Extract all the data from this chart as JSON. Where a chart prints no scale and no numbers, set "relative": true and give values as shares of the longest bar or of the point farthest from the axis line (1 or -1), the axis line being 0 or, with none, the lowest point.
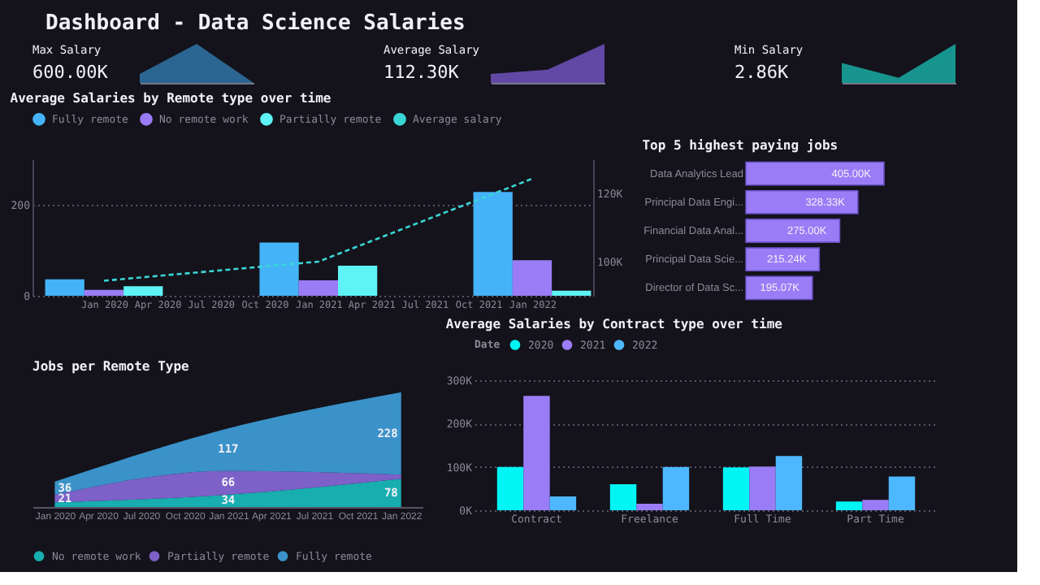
{
  "chart_data": [
    {
      "type": "other",
      "title": "Dashboard - Data Science Salaries"
    },
    {
      "type": "area",
      "relative": true,
      "title": "Max Salary",
      "annotations": [
        "600.00K"
      ],
      "categories": [
        null,
        null,
        null
      ],
      "tick_labels": false,
      "series": [
        {
          "color": "#2e6f9e",
          "values": [
            0.23,
            1,
            0
          ]
        }
      ]
    },
    {
      "type": "area",
      "relative": true,
      "title": "Average Salary",
      "annotations": [
        "112.30K"
      ],
      "categories": [
        null,
        null,
        null
      ],
      "tick_labels": false,
      "series": [
        {
          "color": "#6a4fb5",
          "values": [
            0.23,
            0.34,
            1
          ]
        }
      ]
    },
    {
      "type": "area",
      "relative": true,
      "title": "Min Salary",
      "annotations": [
        "2.86K"
      ],
      "categories": [
        null,
        null,
        null
      ],
      "tick_labels": false,
      "series": [
        {
          "color": "#17a39b",
          "values": [
            0.51,
            0.13,
            1
          ]
        }
      ]
    },
    {
      "type": "bar",
      "title": "Average Salaries by Remote type over time",
      "x": [
        "2020-01",
        "2021-01",
        "2022-01"
      ],
      "xlim": [
        "2019-09-01",
        "2022-04-15"
      ],
      "xticks": [
        {
          "value": "2020-01",
          "label": "Jan 2020"
        },
        {
          "value": "2020-04",
          "label": "Apr 2020"
        },
        {
          "value": "2020-07",
          "label": "Jul 2020"
        },
        {
          "value": "2020-10",
          "label": "Oct 2020"
        },
        {
          "value": "2021-01",
          "label": "Jan 2021"
        },
        {
          "value": "2021-04",
          "label": "Apr 2021"
        },
        {
          "value": "2021-07",
          "label": "Jul 2021"
        },
        {
          "value": "2021-10",
          "label": "Oct 2021"
        },
        {
          "value": "2022-01",
          "label": "Jan 2022"
        }
      ],
      "ylim": [
        0,
        300
      ],
      "yticks": [
        0,
        200
      ],
      "y2lim": [
        90,
        130
      ],
      "y2ticks": [
        {
          "value": 100,
          "label": "100K"
        },
        {
          "value": 120,
          "label": "120K"
        }
      ],
      "grid": "y",
      "legend": "top",
      "series": [
        {
          "name": "Fully remote",
          "color": "#45b3f8",
          "values": [
            36,
            117,
            228
          ]
        },
        {
          "name": "No remote work",
          "color": "#9b7cf7",
          "values": [
            13,
            34,
            78
          ]
        },
        {
          "name": "Partially remote",
          "color": "#5ef3f5",
          "values": [
            21,
            66,
            11
          ]
        },
        {
          "name": "Average salary",
          "type": "line",
          "axis": "y2",
          "line_style": "dashed",
          "color": "#3ad6d6",
          "values": [
            94.4,
            100,
            124.3
          ]
        }
      ]
    },
    {
      "type": "bar",
      "orientation": "horizontal",
      "title": "Top 5 highest paying jobs",
      "categories": [
        "Data Analytics Lead",
        "Principal Data Engi...",
        "Financial Data Anal...",
        "Principal Data Scie...",
        "Director of Data Sc..."
      ],
      "values": [
        405.0,
        328.33,
        275.0,
        215.24,
        195.07
      ],
      "value_labels": [
        "405.00K",
        "328.33K",
        "275.00K",
        "215.24K",
        "195.07K"
      ],
      "colors": [
        "#9b7cf7",
        "#9b7cf7",
        "#9b7cf7",
        "#9b7cf7",
        "#9b7cf7"
      ],
      "tick_labels": "y"
    },
    {
      "type": "area",
      "stacked": true,
      "title": "Jobs per Remote Type",
      "x": [
        "2020-01",
        "2021-01",
        "2022-01"
      ],
      "xlim": [
        "2019-11-15",
        "2022-02-15"
      ],
      "xticks": [
        {
          "value": "2020-01",
          "label": "Jan 2020"
        },
        {
          "value": "2020-04",
          "label": "Apr 2020"
        },
        {
          "value": "2020-07",
          "label": "Jul 2020"
        },
        {
          "value": "2020-10",
          "label": "Oct 2020"
        },
        {
          "value": "2021-01",
          "label": "Jan 2021"
        },
        {
          "value": "2021-04",
          "label": "Apr 2021"
        },
        {
          "value": "2021-07",
          "label": "Jul 2021"
        },
        {
          "value": "2021-10",
          "label": "Oct 2021"
        },
        {
          "value": "2022-01",
          "label": "Jan 2022"
        }
      ],
      "tick_labels": "x",
      "legend": "bottom",
      "series": [
        {
          "name": "No remote work",
          "color": "#19c9c9",
          "values": [
            13,
            34,
            78
          ],
          "value_labels": [
            null,
            "34",
            "78"
          ]
        },
        {
          "name": "Partially remote",
          "color": "#8f6fe6",
          "values": [
            21,
            66,
            11
          ],
          "value_labels": [
            "21",
            "66",
            null
          ]
        },
        {
          "name": "Fully remote",
          "color": "#41a9e8",
          "values": [
            36,
            117,
            228
          ],
          "value_labels": [
            "36",
            "117",
            "228"
          ]
        }
      ]
    },
    {
      "type": "bar",
      "title": "Average Salaries by Contract type over time",
      "legend_title": "Date",
      "legend": "top",
      "categories": [
        "Contract",
        "Freelance",
        "Full Time",
        "Part Time"
      ],
      "ylim": [
        0,
        300
      ],
      "yticks": [
        {
          "value": 0,
          "label": "0K"
        },
        {
          "value": 100,
          "label": "100K"
        },
        {
          "value": 200,
          "label": "200K"
        },
        {
          "value": 300,
          "label": "300K"
        }
      ],
      "grid": "y",
      "series": [
        {
          "name": "2020",
          "color": "#00f5f5",
          "values": [
            100,
            60,
            99,
            20
          ]
        },
        {
          "name": "2021",
          "color": "#9b7cf7",
          "values": [
            264,
            15,
            101,
            24
          ]
        },
        {
          "name": "2022",
          "color": "#4db8ff",
          "values": [
            32,
            100,
            125,
            78
          ]
        }
      ]
    }
  ]
}
